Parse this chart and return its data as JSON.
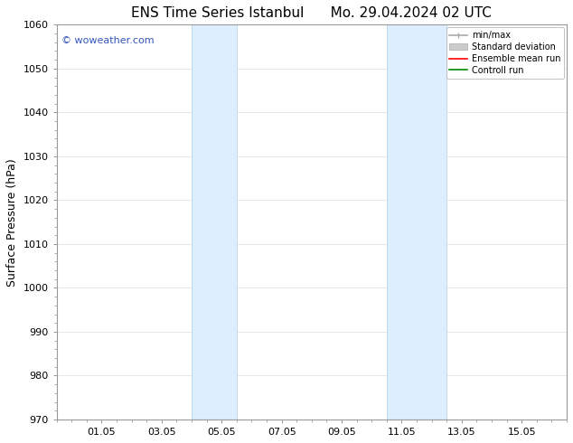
{
  "title_left": "ENS Time Series Istanbul",
  "title_right": "Mo. 29.04.2024 02 UTC",
  "ylabel": "Surface Pressure (hPa)",
  "ylim": [
    970,
    1060
  ],
  "yticks": [
    970,
    980,
    990,
    1000,
    1010,
    1020,
    1030,
    1040,
    1050,
    1060
  ],
  "xlim_start": -0.5,
  "xlim_end": 16.5,
  "xtick_labels": [
    "01.05",
    "03.05",
    "05.05",
    "07.05",
    "09.05",
    "11.05",
    "13.05",
    "15.05"
  ],
  "xtick_positions": [
    1,
    3,
    5,
    7,
    9,
    11,
    13,
    15
  ],
  "shaded_bands": [
    {
      "x_start": 4.0,
      "x_end": 5.5
    },
    {
      "x_start": 10.5,
      "x_end": 12.5
    }
  ],
  "band_color": "#ddeeff",
  "band_edge_color": "#b8d4ee",
  "watermark": "© woweather.com",
  "watermark_color": "#3355bb",
  "bg_color": "#ffffff",
  "legend_items": [
    {
      "label": "min/max",
      "color": "#aaaaaa",
      "style": "line_with_caps"
    },
    {
      "label": "Standard deviation",
      "color": "#cccccc",
      "style": "box"
    },
    {
      "label": "Ensemble mean run",
      "color": "#ff0000",
      "style": "line"
    },
    {
      "label": "Controll run",
      "color": "#008800",
      "style": "line"
    }
  ],
  "grid_color": "#dddddd",
  "spine_color": "#999999",
  "title_fontsize": 11,
  "label_fontsize": 9,
  "tick_fontsize": 8,
  "watermark_fontsize": 8,
  "legend_fontsize": 7
}
